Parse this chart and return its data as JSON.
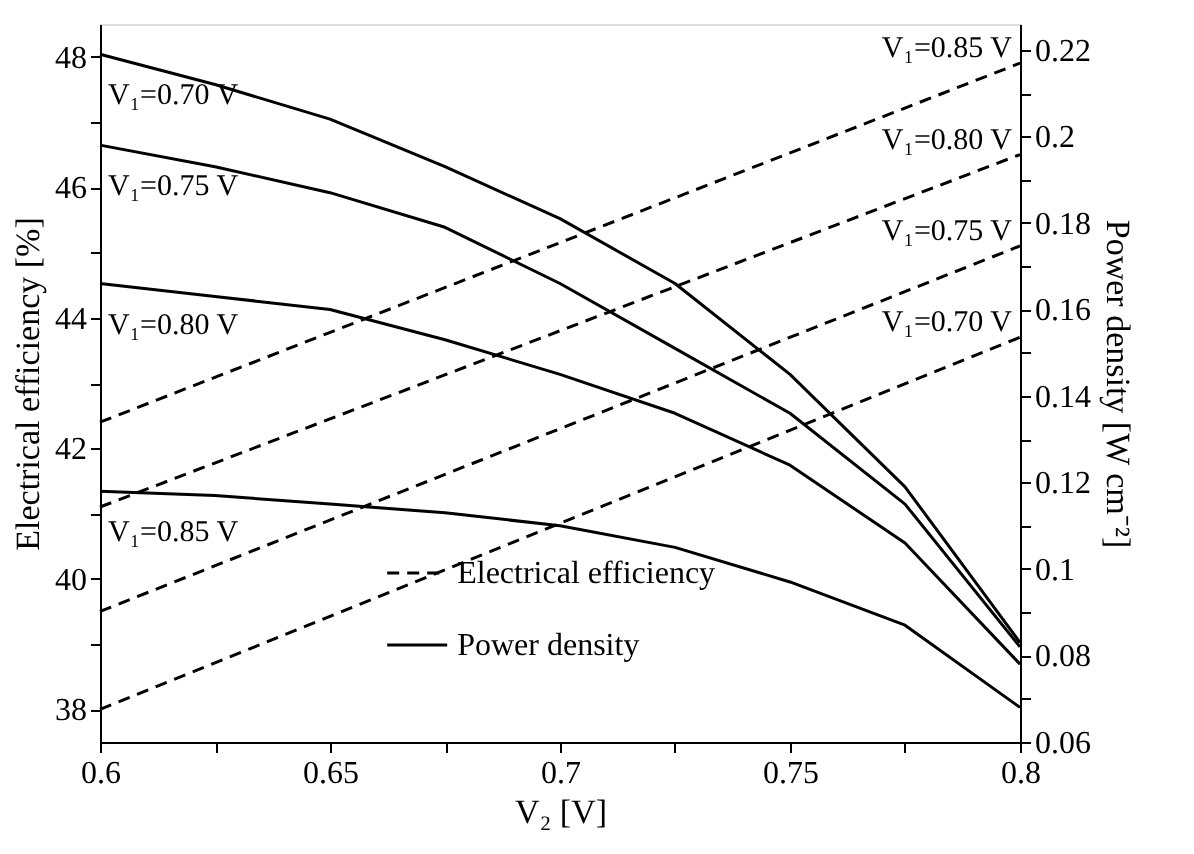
{
  "chart_data": {
    "type": "line",
    "xlabel": "V₂ [V]",
    "ylabel": "Electrical efficiency [%]",
    "y2label": "Power density [W cm⁻²]",
    "xlim": [
      0.6,
      0.8
    ],
    "xticks": [
      0.6,
      {
        "value": 0.625,
        "label": null
      },
      0.65,
      {
        "value": 0.675,
        "label": null
      },
      0.7,
      {
        "value": 0.725,
        "label": null
      },
      0.75,
      {
        "value": 0.775,
        "label": null
      },
      0.8
    ],
    "ylim": [
      37.5,
      48.5
    ],
    "yticks": [
      38,
      {
        "value": 39,
        "label": null
      },
      40,
      {
        "value": 41,
        "label": null
      },
      42,
      {
        "value": 43,
        "label": null
      },
      44,
      {
        "value": 45,
        "label": null
      },
      46,
      {
        "value": 47,
        "label": null
      },
      48
    ],
    "y2lim": [
      0.06,
      0.226
    ],
    "y2ticks": [
      0.06,
      {
        "value": 0.07,
        "label": null
      },
      0.08,
      {
        "value": 0.09,
        "label": null
      },
      0.1,
      {
        "value": 0.11,
        "label": null
      },
      0.12,
      {
        "value": 0.13,
        "label": null
      },
      0.14,
      {
        "value": 0.15,
        "label": null
      },
      0.16,
      {
        "value": 0.17,
        "label": null
      },
      0.18,
      {
        "value": 0.19,
        "label": null
      },
      0.2,
      {
        "value": 0.21,
        "label": null
      },
      0.22
    ],
    "grid": false,
    "legend": "bottom",
    "marker": "none",
    "series": [
      {
        "name": "Electrical efficiency",
        "color": "#000000",
        "line_style": "dashed",
        "x": [
          0.6,
          0.8
        ],
        "values": [
          38.0,
          43.7
        ]
      },
      {
        "color": "#000000",
        "line_style": "dashed",
        "x": [
          0.6,
          0.8
        ],
        "values": [
          39.5,
          45.1
        ]
      },
      {
        "color": "#000000",
        "line_style": "dashed",
        "x": [
          0.6,
          0.8
        ],
        "values": [
          41.1,
          46.5
        ]
      },
      {
        "color": "#000000",
        "line_style": "dashed",
        "x": [
          0.6,
          0.8
        ],
        "values": [
          42.4,
          47.9
        ]
      },
      {
        "name": "Power density",
        "color": "#000000",
        "line_style": "solid",
        "axis": "y2",
        "x": [
          0.6,
          0.625,
          0.65,
          0.675,
          0.7,
          0.725,
          0.75,
          0.775,
          0.8
        ],
        "values": [
          0.219,
          0.212,
          0.204,
          0.193,
          0.181,
          0.166,
          0.145,
          0.119,
          0.083
        ]
      },
      {
        "color": "#000000",
        "line_style": "solid",
        "axis": "y2",
        "x": [
          0.6,
          0.625,
          0.65,
          0.675,
          0.7,
          0.725,
          0.75,
          0.775,
          0.8
        ],
        "values": [
          0.198,
          0.193,
          0.187,
          0.179,
          0.166,
          0.151,
          0.136,
          0.115,
          0.082
        ]
      },
      {
        "color": "#000000",
        "line_style": "solid",
        "axis": "y2",
        "x": [
          0.6,
          0.625,
          0.65,
          0.675,
          0.7,
          0.725,
          0.75,
          0.775,
          0.8
        ],
        "values": [
          0.166,
          0.163,
          0.16,
          0.153,
          0.145,
          0.136,
          0.124,
          0.106,
          0.078
        ]
      },
      {
        "color": "#000000",
        "line_style": "solid",
        "axis": "y2",
        "x": [
          0.6,
          0.625,
          0.65,
          0.675,
          0.7,
          0.725,
          0.75,
          0.775,
          0.8
        ],
        "values": [
          0.118,
          0.117,
          0.115,
          0.113,
          0.11,
          0.105,
          0.097,
          0.087,
          0.068
        ]
      }
    ],
    "annotations": [
      "V₁=0.70 V",
      "V₁=0.75 V",
      "V₁=0.80 V",
      "V₁=0.85 V",
      "V₁=0.70 V",
      "V₁=0.75 V",
      "V₁=0.80 V",
      "V₁=0.85 V"
    ]
  }
}
